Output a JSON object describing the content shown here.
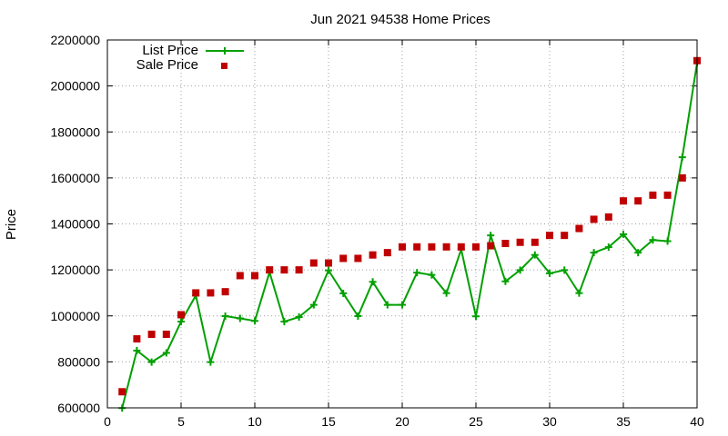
{
  "chart_data": {
    "type": "line",
    "title": "Jun 2021 94538 Home Prices",
    "xlabel": "",
    "ylabel": "Price",
    "xlim": [
      0,
      40
    ],
    "ylim": [
      600000,
      2200000
    ],
    "x_ticks": [
      0,
      5,
      10,
      15,
      20,
      25,
      30,
      35,
      40
    ],
    "y_ticks": [
      600000,
      800000,
      1000000,
      1200000,
      1400000,
      1600000,
      1800000,
      2000000,
      2200000
    ],
    "grid": true,
    "legend_position": "top-left",
    "colors": {
      "list": "#00a000",
      "sale": "#c00000"
    },
    "x": [
      1,
      2,
      3,
      4,
      5,
      6,
      7,
      8,
      9,
      10,
      11,
      12,
      13,
      14,
      15,
      16,
      17,
      18,
      19,
      20,
      21,
      22,
      23,
      24,
      25,
      26,
      27,
      28,
      29,
      30,
      31,
      32,
      33,
      34,
      35,
      36,
      37,
      38,
      39,
      40
    ],
    "series": [
      {
        "name": "List Price",
        "style": "line-points",
        "values": [
          599000,
          849000,
          799000,
          839000,
          975000,
          1089000,
          799000,
          999000,
          989000,
          978000,
          1190000,
          975000,
          995000,
          1048000,
          1198000,
          1098000,
          999000,
          1148000,
          1048000,
          1048000,
          1188000,
          1178000,
          1099000,
          1289000,
          998000,
          1350000,
          1150000,
          1199000,
          1265000,
          1185000,
          1199000,
          1099000,
          1275000,
          1299000,
          1355000,
          1275000,
          1330000,
          1325000,
          1690000,
          2100000
        ]
      },
      {
        "name": "Sale Price",
        "style": "points",
        "values": [
          670000,
          900000,
          920000,
          920000,
          1005000,
          1100000,
          1100000,
          1105000,
          1175000,
          1175000,
          1200000,
          1200000,
          1200000,
          1230000,
          1230000,
          1250000,
          1250000,
          1265000,
          1275000,
          1300000,
          1300000,
          1300000,
          1300000,
          1300000,
          1300000,
          1305000,
          1315000,
          1320000,
          1320000,
          1350000,
          1350000,
          1380000,
          1420000,
          1430000,
          1500000,
          1500000,
          1525000,
          1525000,
          1600000,
          2110000
        ]
      }
    ]
  }
}
